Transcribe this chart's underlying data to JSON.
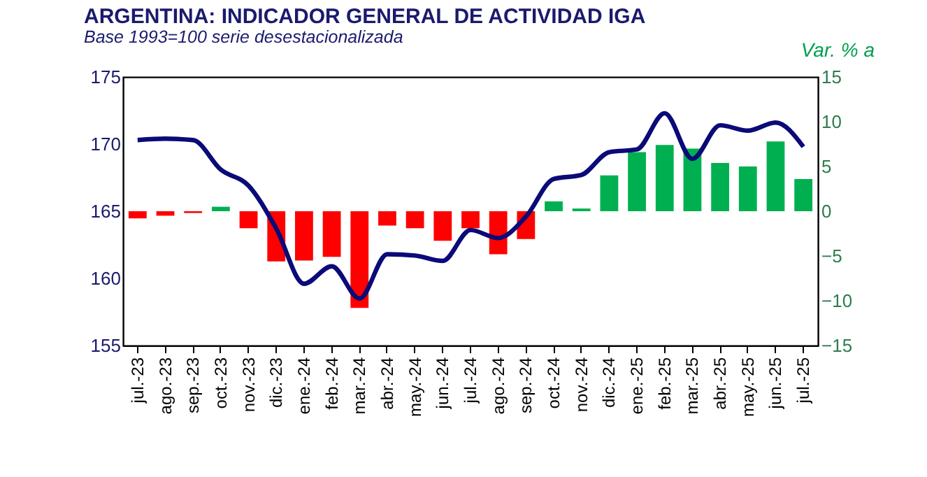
{
  "chart_data": {
    "type": "bar",
    "title": "ARGENTINA: INDICADOR GENERAL DE ACTIVIDAD IGA",
    "subtitle": "Base 1993=100 serie desestacionalizada",
    "y2label": "Var. % a",
    "categories": [
      "jul.-23",
      "ago.-23",
      "sep.-23",
      "oct.-23",
      "nov.-23",
      "dic.-23",
      "ene.-24",
      "feb.-24",
      "mar.-24",
      "abr.-24",
      "may.-24",
      "jun.-24",
      "jul.-24",
      "ago.-24",
      "sep.-24",
      "oct.-24",
      "nov.-24",
      "dic.-24",
      "ene.-25",
      "feb.-25",
      "mar.-25",
      "abr.-25",
      "may.-25",
      "jun.-25",
      "jul.-25"
    ],
    "series": [
      {
        "axis": "y2",
        "colors": [
          "#ff0000",
          "#ff0000",
          "#ff0000",
          "#00b050",
          "#ff0000",
          "#ff0000",
          "#ff0000",
          "#ff0000",
          "#ff0000",
          "#ff0000",
          "#ff0000",
          "#ff0000",
          "#ff0000",
          "#ff0000",
          "#ff0000",
          "#00b050",
          "#00b050",
          "#00b050",
          "#00b050",
          "#00b050",
          "#00b050",
          "#00b050",
          "#00b050",
          "#00b050",
          "#00b050"
        ],
        "values": [
          -0.8,
          -0.5,
          -0.2,
          0.5,
          -1.9,
          -5.6,
          -5.5,
          -5.1,
          -10.8,
          -1.6,
          -1.9,
          -3.3,
          -1.9,
          -4.8,
          -3.1,
          1.1,
          0.3,
          4.0,
          6.6,
          7.4,
          7.0,
          5.4,
          5.0,
          7.8,
          3.6
        ]
      },
      {
        "type": "line",
        "color": "#0a0a78",
        "values": [
          170.3,
          170.4,
          170.3,
          168.1,
          166.9,
          163.7,
          159.6,
          160.9,
          158.5,
          161.8,
          161.7,
          161.3,
          163.6,
          163.0,
          164.6,
          167.4,
          167.7,
          169.4,
          169.6,
          172.3,
          168.9,
          171.4,
          171.0,
          171.6,
          169.8
        ]
      }
    ],
    "ylim": [
      155,
      175
    ],
    "yticks": [
      155,
      160,
      165,
      170,
      175
    ],
    "y2lim": [
      -15,
      15
    ],
    "y2ticks": [
      -15,
      -10,
      -5,
      0,
      5,
      10,
      15
    ],
    "grid": false,
    "legend": false
  }
}
